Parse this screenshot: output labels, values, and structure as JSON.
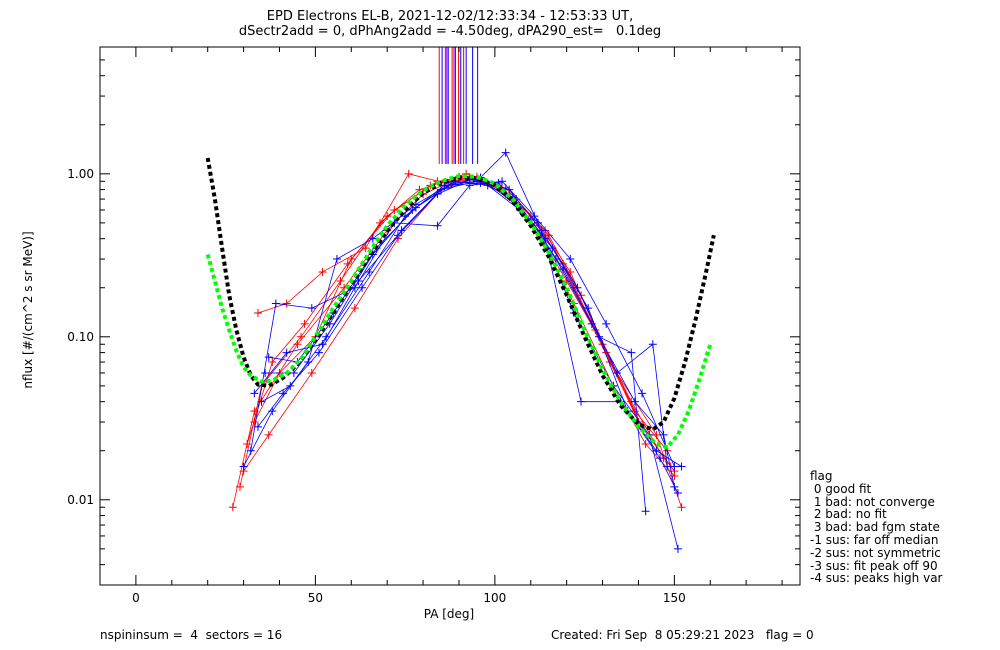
{
  "chart_data": {
    "type": "scatter",
    "title": "EPD Electrons EL-B, 2021-12-02/12:33:34 - 12:53:33 UT,",
    "subtitle": "dSectr2add = 0, dPhAng2add = -4.50deg, dPA290_est=   0.1deg",
    "xlabel": "PA [deg]",
    "ylabel": "nflux [#/(cm^2 s sr MeV)]",
    "xlim": [
      -10,
      185
    ],
    "ylim": [
      0.003,
      6.0
    ],
    "yscale": "log",
    "xticks": [
      0,
      50,
      100,
      150
    ],
    "xtick_labels": [
      "0",
      "50",
      "100",
      "150"
    ],
    "yticks": [
      0.01,
      0.1,
      1.0
    ],
    "ytick_labels": [
      "0.01",
      "0.10",
      "1.00"
    ],
    "series": [
      {
        "color": "#ff0000",
        "marker": "plus",
        "points": [
          [
            27,
            0.009
          ],
          [
            33,
            0.035
          ],
          [
            45,
            0.09
          ],
          [
            58,
            0.2
          ],
          [
            70,
            0.45
          ],
          [
            80,
            0.75
          ],
          [
            88,
            0.9
          ],
          [
            95,
            0.92
          ],
          [
            103,
            0.75
          ],
          [
            113,
            0.4
          ],
          [
            122,
            0.16
          ],
          [
            133,
            0.05
          ],
          [
            142,
            0.022
          ],
          [
            150,
            0.014
          ]
        ]
      },
      {
        "color": "#ff0000",
        "marker": "plus",
        "points": [
          [
            29,
            0.012
          ],
          [
            35,
            0.05
          ],
          [
            46,
            0.1
          ],
          [
            57,
            0.22
          ],
          [
            68,
            0.5
          ],
          [
            79,
            0.8
          ],
          [
            90,
            0.96
          ],
          [
            97,
            0.9
          ],
          [
            106,
            0.7
          ],
          [
            115,
            0.42
          ],
          [
            124,
            0.18
          ],
          [
            134,
            0.06
          ],
          [
            145,
            0.025
          ],
          [
            152,
            0.009
          ]
        ]
      },
      {
        "color": "#ff0000",
        "marker": "plus",
        "points": [
          [
            31,
            0.022
          ],
          [
            38,
            0.07
          ],
          [
            47,
            0.12
          ],
          [
            59,
            0.28
          ],
          [
            70,
            0.55
          ],
          [
            82,
            0.85
          ],
          [
            92,
            1.0
          ],
          [
            101,
            0.85
          ],
          [
            110,
            0.55
          ],
          [
            119,
            0.28
          ],
          [
            128,
            0.11
          ],
          [
            138,
            0.04
          ],
          [
            147,
            0.018
          ]
        ]
      },
      {
        "color": "#ff0000",
        "marker": "plus",
        "points": [
          [
            33,
            0.03
          ],
          [
            40,
            0.06
          ],
          [
            50,
            0.1
          ],
          [
            60,
            0.3
          ],
          [
            72,
            0.6
          ],
          [
            84,
            0.9
          ],
          [
            93,
            0.95
          ],
          [
            103,
            0.82
          ],
          [
            112,
            0.5
          ],
          [
            121,
            0.25
          ],
          [
            131,
            0.08
          ],
          [
            140,
            0.03
          ],
          [
            149,
            0.016
          ]
        ]
      },
      {
        "color": "#ff0000",
        "marker": "plus",
        "points": [
          [
            34,
            0.14
          ],
          [
            42,
            0.16
          ],
          [
            52,
            0.25
          ],
          [
            64,
            0.35
          ],
          [
            76,
            1.0
          ],
          [
            86,
            0.88
          ],
          [
            95,
            0.96
          ],
          [
            104,
            0.75
          ],
          [
            114,
            0.45
          ],
          [
            122,
            0.2
          ],
          [
            132,
            0.07
          ],
          [
            141,
            0.028
          ],
          [
            150,
            0.015
          ]
        ]
      },
      {
        "color": "#ff0000",
        "marker": "plus",
        "points": [
          [
            30,
            0.015
          ],
          [
            37,
            0.025
          ],
          [
            49,
            0.06
          ],
          [
            61,
            0.15
          ],
          [
            73,
            0.4
          ],
          [
            85,
            0.8
          ],
          [
            94,
            0.93
          ],
          [
            102,
            0.8
          ],
          [
            111,
            0.48
          ],
          [
            120,
            0.22
          ],
          [
            130,
            0.09
          ],
          [
            139,
            0.035
          ],
          [
            148,
            0.02
          ]
        ]
      },
      {
        "color": "#0000ff",
        "marker": "plus",
        "points": [
          [
            30,
            0.016
          ],
          [
            38,
            0.035
          ],
          [
            48,
            0.07
          ],
          [
            56,
            0.3
          ],
          [
            66,
            0.4
          ],
          [
            78,
            0.65
          ],
          [
            87,
            0.85
          ],
          [
            96,
            0.95
          ],
          [
            103,
            1.35
          ],
          [
            112,
            0.5
          ],
          [
            122,
            0.14
          ],
          [
            133,
            0.05
          ],
          [
            143,
            0.025
          ],
          [
            151,
            0.005
          ]
        ]
      },
      {
        "color": "#0000ff",
        "marker": "plus",
        "points": [
          [
            32,
            0.02
          ],
          [
            39,
            0.16
          ],
          [
            49,
            0.15
          ],
          [
            61,
            0.2
          ],
          [
            72,
            0.5
          ],
          [
            84,
            0.48
          ],
          [
            93,
            0.85
          ],
          [
            102,
            0.9
          ],
          [
            111,
            0.55
          ],
          [
            121,
            0.3
          ],
          [
            131,
            0.12
          ],
          [
            141,
            0.045
          ],
          [
            150,
            0.016
          ]
        ]
      },
      {
        "color": "#0000ff",
        "marker": "plus",
        "points": [
          [
            34,
            0.028
          ],
          [
            41,
            0.045
          ],
          [
            51,
            0.08
          ],
          [
            63,
            0.2
          ],
          [
            74,
            0.45
          ],
          [
            85,
            0.8
          ],
          [
            95,
            0.9
          ],
          [
            104,
            0.8
          ],
          [
            113,
            0.45
          ],
          [
            123,
            0.2
          ],
          [
            134,
            0.06
          ],
          [
            144,
            0.09
          ],
          [
            148,
            0.016
          ]
        ]
      },
      {
        "color": "#0000ff",
        "marker": "plus",
        "points": [
          [
            35,
            0.04
          ],
          [
            43,
            0.05
          ],
          [
            53,
            0.1
          ],
          [
            65,
            0.25
          ],
          [
            75,
            0.55
          ],
          [
            86,
            0.85
          ],
          [
            96,
            0.88
          ],
          [
            105,
            0.72
          ],
          [
            114,
            0.4
          ],
          [
            124,
            0.04
          ],
          [
            135,
            0.04
          ],
          [
            145,
            0.02
          ],
          [
            152,
            0.016
          ]
        ]
      },
      {
        "color": "#0000ff",
        "marker": "plus",
        "points": [
          [
            36,
            0.06
          ],
          [
            44,
            0.06
          ],
          [
            54,
            0.12
          ],
          [
            66,
            0.32
          ],
          [
            77,
            0.6
          ],
          [
            88,
            0.88
          ],
          [
            97,
            0.9
          ],
          [
            106,
            0.65
          ],
          [
            116,
            0.35
          ],
          [
            126,
            0.15
          ],
          [
            137,
            0.035
          ],
          [
            146,
            0.018
          ],
          [
            151,
            0.011
          ]
        ]
      },
      {
        "color": "#0000ff",
        "marker": "plus",
        "points": [
          [
            37,
            0.075
          ],
          [
            45,
            0.07
          ],
          [
            55,
            0.14
          ],
          [
            67,
            0.35
          ],
          [
            78,
            0.62
          ],
          [
            89,
            0.9
          ],
          [
            98,
            0.85
          ],
          [
            107,
            0.6
          ],
          [
            117,
            0.3
          ],
          [
            127,
            0.12
          ],
          [
            139,
            0.04
          ],
          [
            147,
            0.025
          ],
          [
            150,
            0.012
          ]
        ]
      },
      {
        "color": "#0000ff",
        "marker": "plus",
        "points": [
          [
            33,
            0.045
          ],
          [
            42,
            0.08
          ],
          [
            52,
            0.09
          ],
          [
            62,
            0.22
          ],
          [
            73,
            0.42
          ],
          [
            84,
            0.75
          ],
          [
            93,
            0.92
          ],
          [
            101,
            0.88
          ],
          [
            110,
            0.52
          ],
          [
            119,
            0.26
          ],
          [
            129,
            0.1
          ],
          [
            138,
            0.08
          ],
          [
            142,
            0.0085
          ]
        ]
      }
    ],
    "fits": [
      {
        "color": "#000000",
        "style": "dotted",
        "points": [
          [
            20,
            1.25
          ],
          [
            22,
            0.7
          ],
          [
            24,
            0.35
          ],
          [
            26,
            0.18
          ],
          [
            28,
            0.11
          ],
          [
            30,
            0.075
          ],
          [
            32,
            0.058
          ],
          [
            34,
            0.051
          ],
          [
            37,
            0.05
          ],
          [
            41,
            0.056
          ],
          [
            45,
            0.068
          ],
          [
            50,
            0.095
          ],
          [
            55,
            0.14
          ],
          [
            60,
            0.21
          ],
          [
            65,
            0.31
          ],
          [
            70,
            0.45
          ],
          [
            75,
            0.6
          ],
          [
            80,
            0.76
          ],
          [
            85,
            0.88
          ],
          [
            90,
            0.95
          ],
          [
            95,
            0.94
          ],
          [
            100,
            0.85
          ],
          [
            105,
            0.68
          ],
          [
            110,
            0.48
          ],
          [
            115,
            0.31
          ],
          [
            120,
            0.18
          ],
          [
            125,
            0.1
          ],
          [
            130,
            0.058
          ],
          [
            135,
            0.038
          ],
          [
            140,
            0.029
          ],
          [
            144,
            0.027
          ],
          [
            147,
            0.03
          ],
          [
            150,
            0.042
          ],
          [
            153,
            0.07
          ],
          [
            156,
            0.13
          ],
          [
            159,
            0.26
          ],
          [
            161,
            0.42
          ]
        ]
      },
      {
        "color": "#00ff00",
        "style": "dotted",
        "points": [
          [
            20,
            0.32
          ],
          [
            22,
            0.22
          ],
          [
            24,
            0.15
          ],
          [
            26,
            0.11
          ],
          [
            28,
            0.082
          ],
          [
            30,
            0.065
          ],
          [
            32,
            0.058
          ],
          [
            35,
            0.053
          ],
          [
            38,
            0.054
          ],
          [
            42,
            0.06
          ],
          [
            46,
            0.073
          ],
          [
            50,
            0.1
          ],
          [
            55,
            0.15
          ],
          [
            60,
            0.22
          ],
          [
            65,
            0.33
          ],
          [
            70,
            0.48
          ],
          [
            75,
            0.64
          ],
          [
            80,
            0.79
          ],
          [
            85,
            0.9
          ],
          [
            90,
            0.97
          ],
          [
            95,
            0.96
          ],
          [
            100,
            0.87
          ],
          [
            105,
            0.7
          ],
          [
            110,
            0.5
          ],
          [
            115,
            0.33
          ],
          [
            120,
            0.2
          ],
          [
            125,
            0.11
          ],
          [
            130,
            0.063
          ],
          [
            135,
            0.04
          ],
          [
            140,
            0.028
          ],
          [
            145,
            0.022
          ],
          [
            148,
            0.021
          ],
          [
            151,
            0.025
          ],
          [
            154,
            0.035
          ],
          [
            157,
            0.055
          ],
          [
            160,
            0.09
          ]
        ]
      }
    ],
    "vlines": [
      {
        "color": "#ff0000",
        "x": [
          84.5,
          86.2,
          88.1,
          89.9,
          91.3
        ]
      },
      {
        "color": "#0000ff",
        "x": [
          85.3,
          87.0,
          89.0,
          90.5,
          92.0,
          93.8,
          95.2
        ]
      },
      {
        "color": "#8800ff",
        "x": [
          86.6,
          88.6
        ]
      }
    ],
    "legend": {
      "title": "flag",
      "entries": [
        " 0 good fit",
        " 1 bad: not converge",
        " 2 bad: no fit",
        " 3 bad: bad fgm state",
        "-1 sus: far off median",
        "-2 sus: not symmetric",
        "-3 sus: fit peak off 90",
        "-4 sus: peaks high var"
      ]
    },
    "grid": false
  },
  "footer": {
    "left": "nspininsum =  4  sectors = 16",
    "right": "Created: Fri Sep  8 05:29:21 2023   flag = 0"
  }
}
